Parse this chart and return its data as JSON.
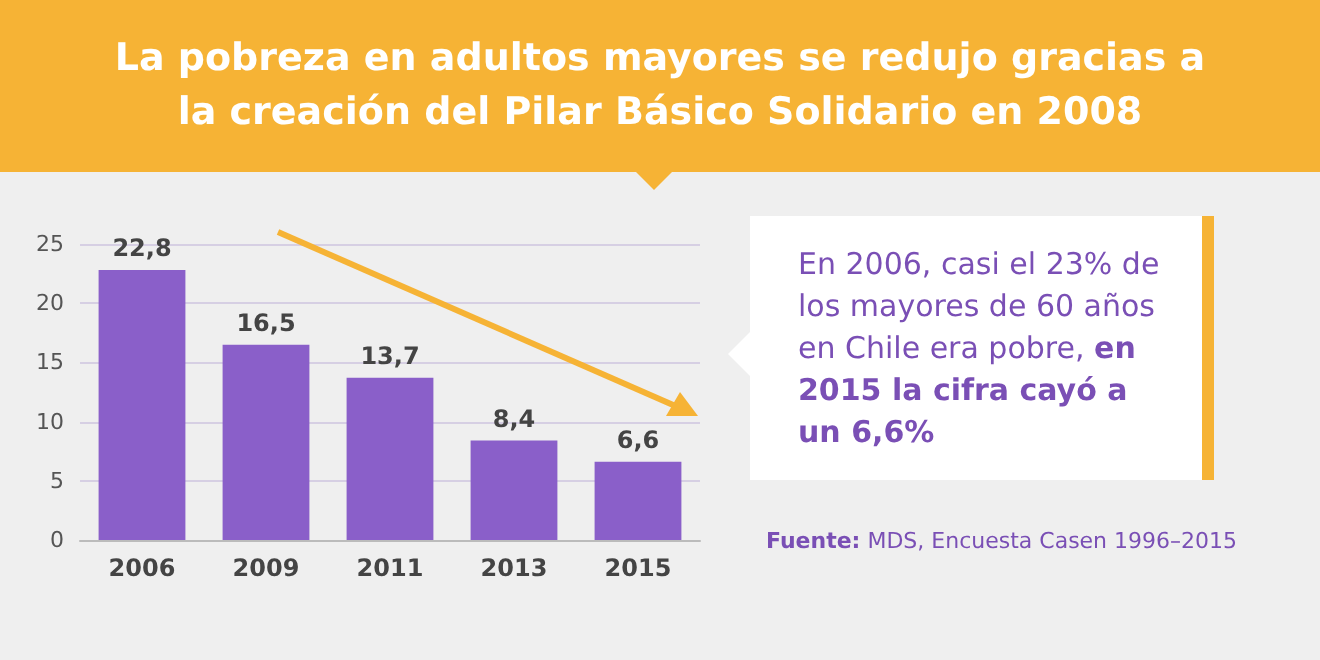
{
  "chart_data": {
    "type": "bar",
    "title": "La pobreza en adultos mayores se redujo gracias a la creación del Pilar Básico Solidario en 2008",
    "categories": [
      "2006",
      "2009",
      "2011",
      "2013",
      "2015"
    ],
    "values": [
      22.8,
      16.5,
      13.7,
      8.4,
      6.6
    ],
    "value_labels": [
      "22,8",
      "16,5",
      "13,7",
      "8,4",
      "6,6"
    ],
    "color": "#8a5fc9",
    "ylim": [
      0,
      25
    ],
    "yticks": [
      0,
      5,
      10,
      15,
      20,
      25
    ],
    "grid": "y",
    "annotations": [
      "En 2006, casi el 23% de los mayores de 60 años en Chile era pobre,",
      "en 2015 la cifra cayó a un 6,6%",
      "Fuente: MDS, Encuesta Casen 1996–2015"
    ]
  }
}
